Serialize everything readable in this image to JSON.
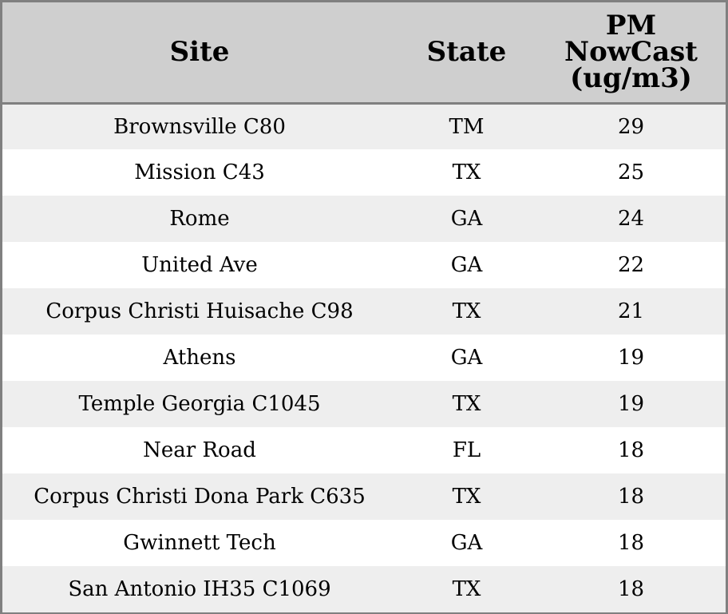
{
  "chart_data": {
    "type": "table",
    "columns": [
      "Site",
      "State",
      "PM NowCast (ug/m3)"
    ],
    "header_lines": {
      "site": "Site",
      "state": "State",
      "pm": [
        "PM",
        "NowCast",
        "(ug/m3)"
      ]
    },
    "rows": [
      {
        "site": "Brownsville C80",
        "state": "TM",
        "pm": "29"
      },
      {
        "site": "Mission C43",
        "state": "TX",
        "pm": "25"
      },
      {
        "site": "Rome",
        "state": "GA",
        "pm": "24"
      },
      {
        "site": "United Ave",
        "state": "GA",
        "pm": "22"
      },
      {
        "site": "Corpus Christi Huisache C98",
        "state": "TX",
        "pm": "21"
      },
      {
        "site": "Athens",
        "state": "GA",
        "pm": "19"
      },
      {
        "site": "Temple Georgia C1045",
        "state": "TX",
        "pm": "19"
      },
      {
        "site": "Near Road",
        "state": "FL",
        "pm": "18"
      },
      {
        "site": "Corpus Christi Dona Park C635",
        "state": "TX",
        "pm": "18"
      },
      {
        "site": "Gwinnett Tech",
        "state": "GA",
        "pm": "18"
      },
      {
        "site": "San Antonio IH35 C1069",
        "state": "TX",
        "pm": "18"
      }
    ]
  },
  "colors": {
    "header_background": "#cfcfcf",
    "stripe_background": "#eeeeee",
    "border": "#808080"
  }
}
